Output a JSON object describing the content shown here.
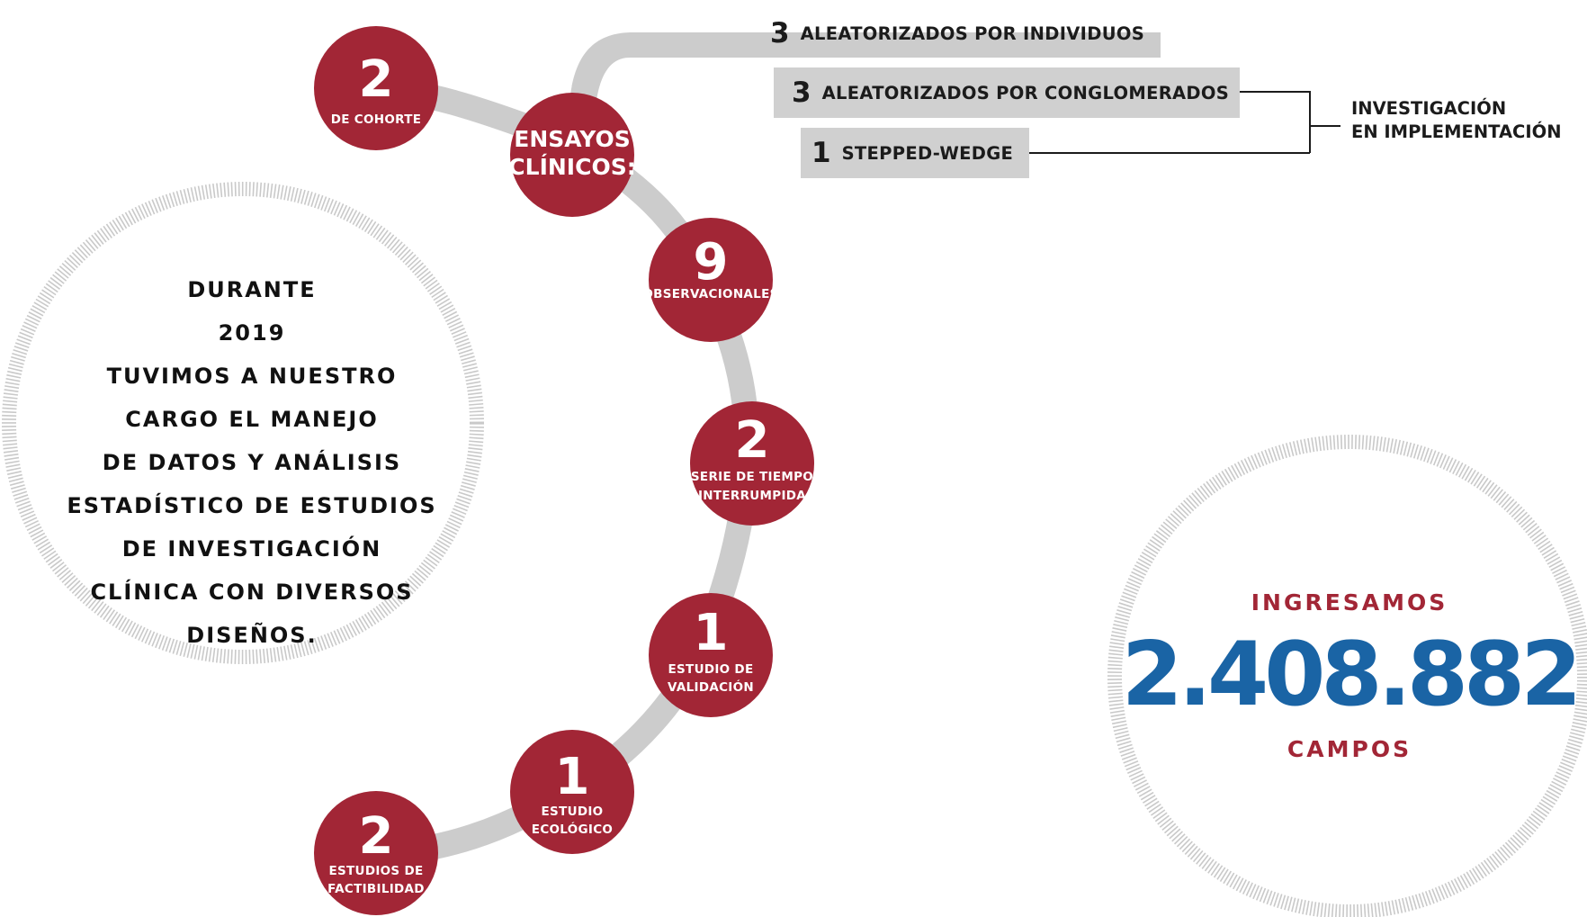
{
  "colors": {
    "node_fill": "#a22636",
    "track": "#cccccc",
    "box": "#d0d0d0",
    "accent_blue": "#1a64a5",
    "accent_red": "#a22636",
    "text_dark": "#1b1b1b"
  },
  "nodes": [
    {
      "id": "de-cohorte",
      "number": "2",
      "lines": [
        "DE COHORTE"
      ]
    },
    {
      "id": "ensayos-clinicos",
      "number": "",
      "lines": [
        "ENSAYOS",
        "CLÍNICOS:"
      ]
    },
    {
      "id": "observacionales",
      "number": "9",
      "lines": [
        "OBSERVACIONALES"
      ]
    },
    {
      "id": "serie-de-tiempo",
      "number": "2",
      "lines": [
        "SERIE DE TIEMPO",
        "INTERRUMPIDA"
      ]
    },
    {
      "id": "estudio-de-validacion",
      "number": "1",
      "lines": [
        "ESTUDIO DE",
        "VALIDACIÓN"
      ]
    },
    {
      "id": "estudio-ecologico",
      "number": "1",
      "lines": [
        "ESTUDIO",
        "ECOLÓGICO"
      ]
    },
    {
      "id": "estudios-de-factibilidad",
      "number": "2",
      "lines": [
        "ESTUDIOS DE",
        "FACTIBILIDAD"
      ]
    }
  ],
  "trials": [
    {
      "number": "3",
      "label": "ALEATORIZADOS POR INDIVIDUOS"
    },
    {
      "number": "3",
      "label": "ALEATORIZADOS POR CONGLOMERADOS"
    },
    {
      "number": "1",
      "label": "STEPPED-WEDGE"
    }
  ],
  "implementation": {
    "line1": "INVESTIGACIÓN",
    "line2": "EN IMPLEMENTACIÓN"
  },
  "left_circle": {
    "lines": [
      "DURANTE",
      "2019",
      "TUVIMOS A NUESTRO",
      "CARGO EL MANEJO",
      "DE DATOS Y ANÁLISIS",
      "ESTADÍSTICO DE ESTUDIOS",
      "DE INVESTIGACIÓN",
      "CLÍNICA CON DIVERSOS",
      "DISEÑOS."
    ]
  },
  "right_circle": {
    "top_label": "INGRESAMOS",
    "number": "2.408.882",
    "bottom_label": "CAMPOS"
  }
}
